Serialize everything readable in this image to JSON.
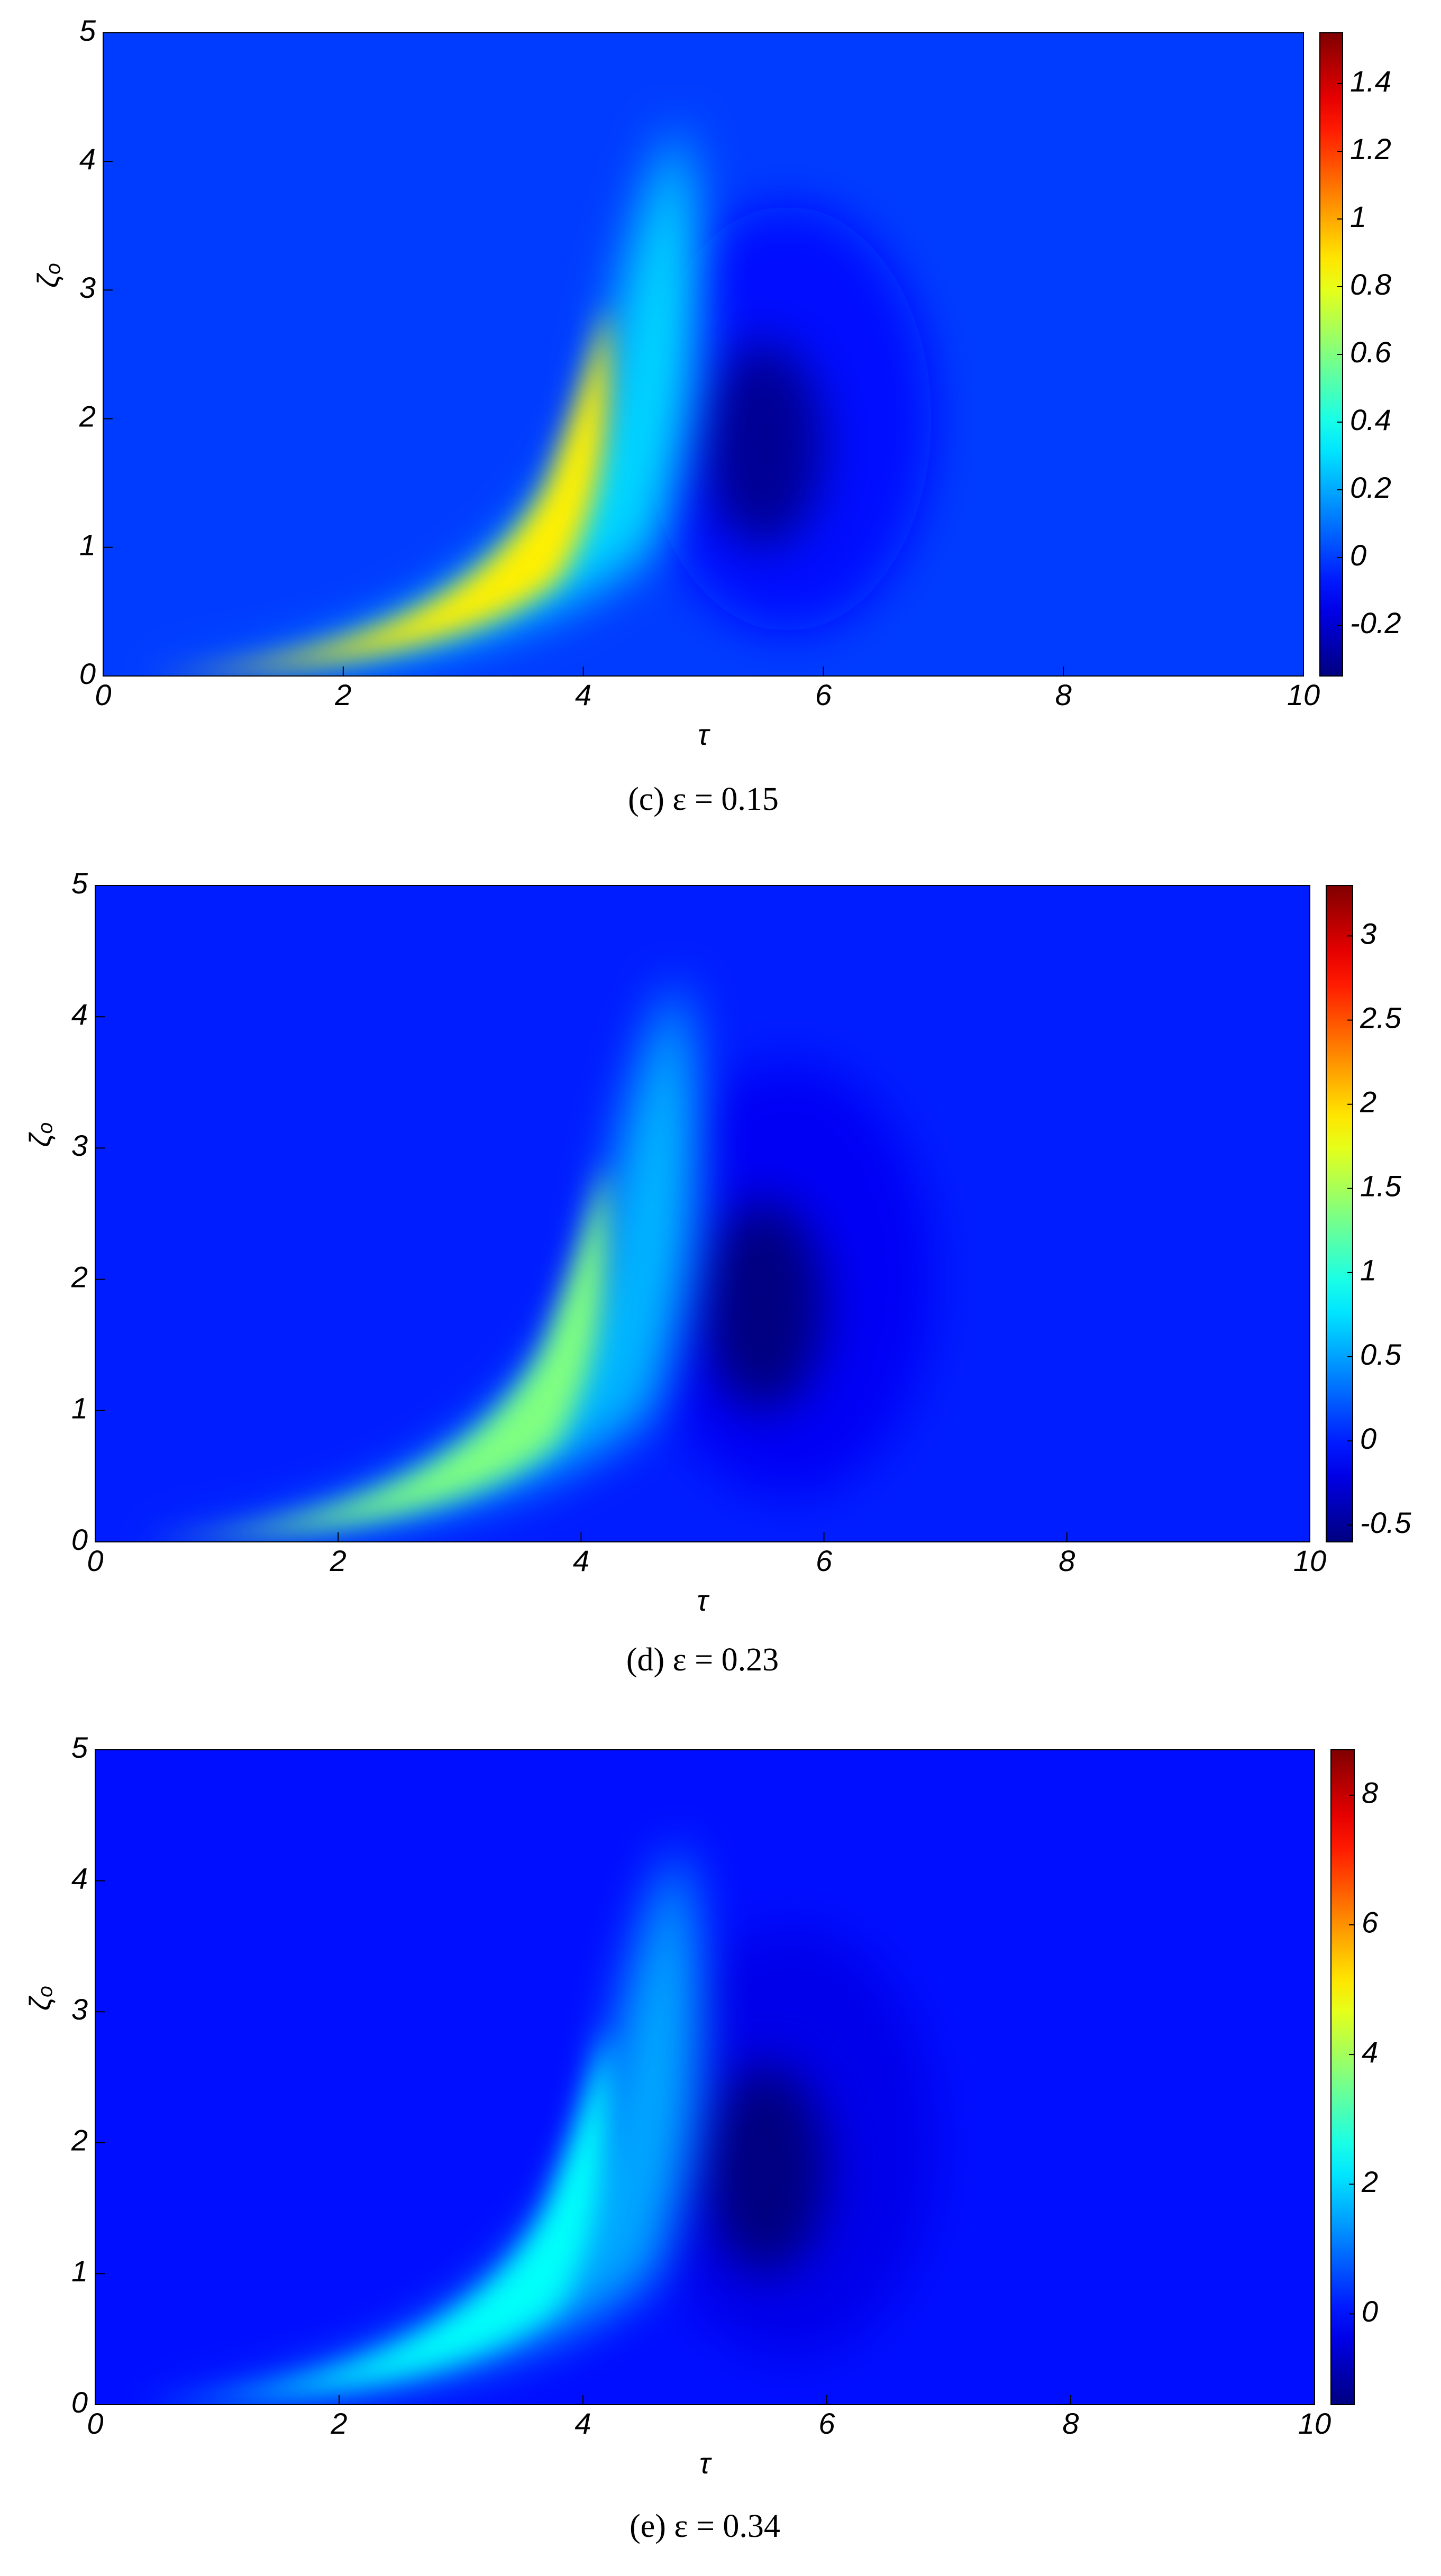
{
  "chart_data": [
    {
      "type": "contour",
      "caption": "(c) ε = 0.15",
      "xlabel": "τ",
      "ylabel": "ζₒ",
      "xlim": [
        0,
        10
      ],
      "xticks": [
        0,
        2,
        4,
        6,
        8,
        10
      ],
      "ylim": [
        0,
        5
      ],
      "yticks": [
        0,
        1,
        2,
        3,
        4,
        5
      ],
      "clim": [
        -0.35,
        1.55
      ],
      "cticks": [
        -0.2,
        0,
        0.2,
        0.4,
        0.6,
        0.8,
        1,
        1.2,
        1.4
      ],
      "colormap": "jet"
    },
    {
      "type": "contour",
      "caption": "(d) ε = 0.23",
      "xlabel": "τ",
      "ylabel": "ζₒ",
      "xlim": [
        0,
        10
      ],
      "xticks": [
        0,
        2,
        4,
        6,
        8,
        10
      ],
      "ylim": [
        0,
        5
      ],
      "yticks": [
        0,
        1,
        2,
        3,
        4,
        5
      ],
      "clim": [
        -0.6,
        3.3
      ],
      "cticks": [
        -0.5,
        0,
        0.5,
        1,
        1.5,
        2,
        2.5,
        3
      ],
      "colormap": "jet"
    },
    {
      "type": "contour",
      "caption": "(e) ε = 0.34",
      "xlabel": "τ",
      "ylabel": "ζₒ",
      "xlim": [
        0,
        10
      ],
      "xticks": [
        0,
        2,
        4,
        6,
        8,
        10
      ],
      "ylim": [
        0,
        5
      ],
      "yticks": [
        0,
        1,
        2,
        3,
        4,
        5
      ],
      "clim": [
        -1.4,
        8.7
      ],
      "cticks": [
        0,
        2,
        4,
        6,
        8
      ],
      "colormap": "jet"
    }
  ]
}
